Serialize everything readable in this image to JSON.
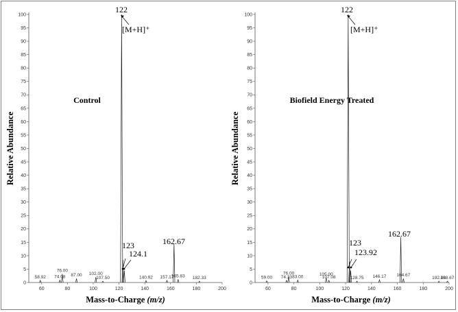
{
  "chart_data": [
    {
      "type": "line",
      "title": "Control",
      "xlabel": "Mass-to-Charge",
      "xlabel_italic": "(m/z)",
      "ylabel": "Relative Abundance",
      "xlim": [
        50,
        200
      ],
      "ylim": [
        0,
        100
      ],
      "x_ticks": [
        "60",
        "80",
        "100",
        "120",
        "140",
        "160",
        "180",
        "200"
      ],
      "y_ticks": [
        "0",
        "5",
        "10",
        "15",
        "20",
        "25",
        "30",
        "35",
        "40",
        "45",
        "50",
        "55",
        "60",
        "65",
        "70",
        "75",
        "80",
        "85",
        "90",
        "95",
        "100"
      ],
      "peaks": [
        {
          "x": 58.92,
          "y": 0.8,
          "label": "58.92"
        },
        {
          "x": 74.08,
          "y": 0.9,
          "label": "74.08"
        },
        {
          "x": 76.0,
          "y": 3.2,
          "label": "76.00"
        },
        {
          "x": 87.0,
          "y": 1.5,
          "label": "87.00"
        },
        {
          "x": 102.0,
          "y": 2.0,
          "label": "102.00"
        },
        {
          "x": 107.5,
          "y": 0.5,
          "label": "107.50"
        },
        {
          "x": 122,
          "y": 100,
          "label": "122"
        },
        {
          "x": 123,
          "y": 8.5,
          "label": "123"
        },
        {
          "x": 124.1,
          "y": 4.5,
          "label": "124.1"
        },
        {
          "x": 140.92,
          "y": 0.7,
          "label": "140.92"
        },
        {
          "x": 157.17,
          "y": 0.8,
          "label": "157.17"
        },
        {
          "x": 162.67,
          "y": 14.5,
          "label": "162.67"
        },
        {
          "x": 165.83,
          "y": 1.2,
          "label": "165.83"
        },
        {
          "x": 182.33,
          "y": 0.5,
          "label": "182.33"
        }
      ],
      "annotation": "[M+H]⁺"
    },
    {
      "type": "line",
      "title": "Biofield Energy Treated",
      "xlabel": "Mass-to-Charge",
      "xlabel_italic": "(m/z)",
      "ylabel": "Relative Abundance",
      "xlim": [
        50,
        200
      ],
      "ylim": [
        0,
        100
      ],
      "x_ticks": [
        "60",
        "80",
        "100",
        "120",
        "140",
        "160",
        "180",
        "200"
      ],
      "y_ticks": [
        "0",
        "5",
        "10",
        "15",
        "20",
        "25",
        "30",
        "35",
        "40",
        "45",
        "50",
        "55",
        "60",
        "65",
        "70",
        "75",
        "80",
        "85",
        "90",
        "95",
        "100"
      ],
      "peaks": [
        {
          "x": 59.0,
          "y": 0.6,
          "label": "59.00"
        },
        {
          "x": 74.33,
          "y": 0.8,
          "label": "74.33"
        },
        {
          "x": 76.0,
          "y": 2.2,
          "label": "76.00"
        },
        {
          "x": 83.0,
          "y": 0.9,
          "label": "83.00"
        },
        {
          "x": 105.0,
          "y": 1.8,
          "label": "105.00"
        },
        {
          "x": 107.08,
          "y": 0.8,
          "label": "107.08"
        },
        {
          "x": 122,
          "y": 100,
          "label": "122"
        },
        {
          "x": 123,
          "y": 8.0,
          "label": "123"
        },
        {
          "x": 123.92,
          "y": 4.5,
          "label": "123.92"
        },
        {
          "x": 128.75,
          "y": 0.5,
          "label": "128.75"
        },
        {
          "x": 146.17,
          "y": 1.0,
          "label": "146.17"
        },
        {
          "x": 162.67,
          "y": 17.0,
          "label": "162.67"
        },
        {
          "x": 164.67,
          "y": 1.5,
          "label": "164.67"
        },
        {
          "x": 192.08,
          "y": 0.5,
          "label": "192.08"
        },
        {
          "x": 198.67,
          "y": 0.5,
          "label": "198.67"
        }
      ],
      "annotation": "[M+H]⁺"
    }
  ]
}
